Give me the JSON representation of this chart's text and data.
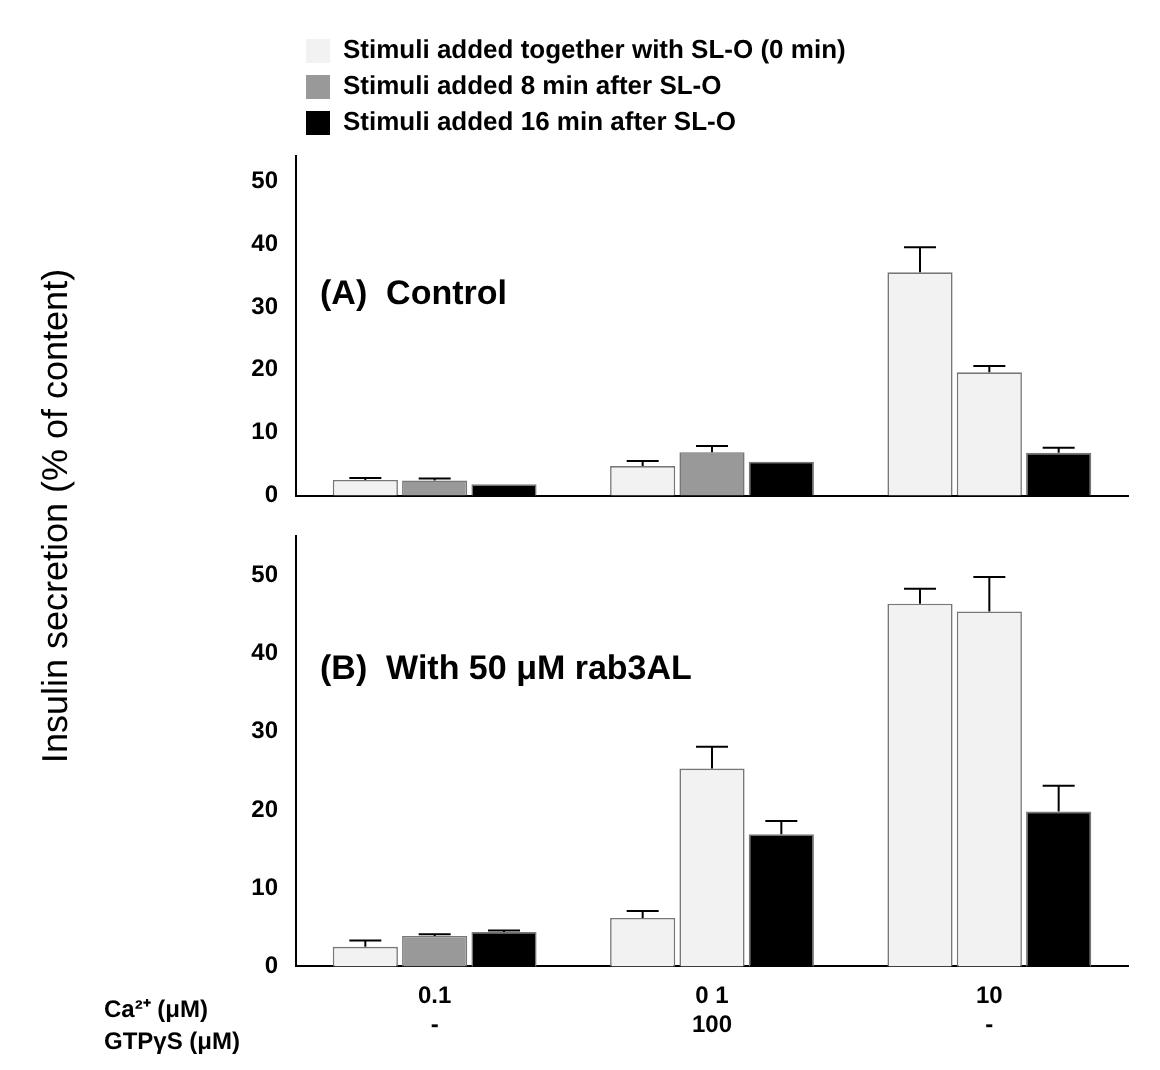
{
  "chart_data": [
    {
      "type": "bar",
      "title": "(A)  Control",
      "ylabel": "Insulin secretion (% of content)",
      "categories": [
        null,
        null,
        null
      ],
      "ylim": [
        0,
        54
      ],
      "yticks": [
        0,
        10,
        20,
        30,
        40,
        50
      ],
      "tick_labels": "y",
      "grid": false,
      "legend": "top left",
      "series": [
        {
          "name": "Stimuli added together with SL-O (0 min)",
          "color": "#f2f2f2",
          "values": [
            2.5,
            4.7,
            35.5
          ],
          "errors": [
            0.3,
            0.8,
            4.0
          ]
        },
        {
          "name": "Stimuli added 8 min after SL-O",
          "color": "#999999",
          "colors": [
            "#999999",
            "#999999",
            "#f2f2f2"
          ],
          "values": [
            2.4,
            6.9,
            19.6
          ],
          "errors": [
            0.3,
            1.0,
            1.0
          ]
        },
        {
          "name": "Stimuli added 16 min after SL-O",
          "color": "#000000",
          "values": [
            1.8,
            5.4,
            6.8
          ],
          "errors": [
            null,
            null,
            0.8
          ]
        }
      ]
    },
    {
      "type": "bar",
      "title": "(B)  With 50 μM rab3AL",
      "categories": [
        "0.1\n-",
        "0 1\n100",
        "10\n-"
      ],
      "ylim": [
        0,
        55
      ],
      "yticks": [
        0,
        10,
        20,
        30,
        40,
        50
      ],
      "grid": false,
      "annotations": [
        "Ca²⁺ (μM)",
        "GTPγS (μM)"
      ],
      "series": [
        {
          "color": "#f2f2f2",
          "values": [
            2.5,
            6.2,
            46.4
          ],
          "errors": [
            0.8,
            0.9,
            1.9
          ]
        },
        {
          "colors": [
            "#999999",
            "#f2f2f2",
            "#f2f2f2"
          ],
          "values": [
            3.9,
            25.3,
            45.4
          ],
          "errors": [
            0.2,
            2.8,
            4.4
          ]
        },
        {
          "color": "#000000",
          "values": [
            4.4,
            16.9,
            19.8
          ],
          "errors": [
            0.2,
            1.7,
            3.3
          ]
        }
      ]
    }
  ]
}
